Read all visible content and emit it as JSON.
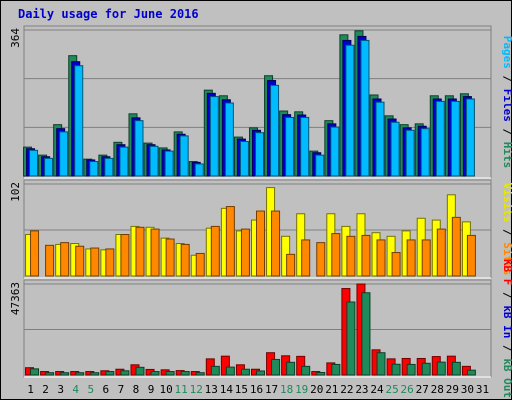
{
  "chart_data": {
    "type": "bar",
    "title": "Daily usage for June 2016",
    "categories": [
      "1",
      "2",
      "3",
      "4",
      "5",
      "6",
      "7",
      "8",
      "9",
      "10",
      "11",
      "12",
      "13",
      "14",
      "15",
      "16",
      "17",
      "18",
      "19",
      "20",
      "21",
      "22",
      "23",
      "24",
      "25",
      "26",
      "27",
      "28",
      "29",
      "30",
      "31"
    ],
    "weekend_days": [
      4,
      5,
      11,
      12,
      18,
      19,
      25,
      26
    ],
    "panels": [
      {
        "id": "top",
        "ymax": 364,
        "ytick_label": "364",
        "side_labels": [
          {
            "text": "Pages",
            "color": "#00bbff"
          },
          {
            "text": " / ",
            "color": "#000000"
          },
          {
            "text": "Files",
            "color": "#0000cc"
          },
          {
            "text": " / ",
            "color": "#000000"
          },
          {
            "text": "Hits",
            "color": "#1f8a5a"
          }
        ],
        "series": [
          {
            "name": "Hits",
            "color": "#1f8a5a",
            "values": [
              72,
              52,
              128,
              300,
              42,
              52,
              84,
              155,
              82,
              70,
              110,
              36,
              214,
              200,
              97,
              120,
              250,
              162,
              160,
              62,
              138,
              352,
              362,
              202,
              150,
              128,
              130,
              200,
              200,
              205,
              0
            ]
          },
          {
            "name": "Files",
            "color": "#0000cc",
            "values": [
              68,
              48,
              118,
              285,
              40,
              48,
              78,
              145,
              78,
              65,
              104,
              34,
              206,
              190,
              92,
              114,
              238,
              153,
              152,
              58,
              130,
              338,
              348,
              192,
              142,
              120,
              124,
              192,
              192,
              198,
              0
            ]
          },
          {
            "name": "Pages",
            "color": "#00bbff",
            "values": [
              64,
              44,
              110,
              275,
              36,
              44,
              72,
              138,
              74,
              62,
              100,
              30,
              198,
              182,
              86,
              108,
              226,
              146,
              146,
              52,
              122,
              326,
              338,
              184,
              134,
              114,
              118,
              186,
              186,
              192,
              0
            ]
          }
        ]
      },
      {
        "id": "middle",
        "ymax": 102,
        "ytick_label": "102",
        "side_labels": [
          {
            "text": "Visits",
            "color": "#e6e600"
          },
          {
            "text": " / ",
            "color": "#000000"
          },
          {
            "text": "Sites",
            "color": "#ff8800"
          }
        ],
        "series": [
          {
            "name": "Visits",
            "color": "#ffff00",
            "values": [
              46,
              0,
              35,
              36,
              30,
              29,
              46,
              55,
              54,
              42,
              36,
              23,
              53,
              75,
              50,
              62,
              98,
              44,
              69,
              0,
              69,
              55,
              69,
              48,
              44,
              50,
              64,
              62,
              90,
              60,
              0
            ]
          },
          {
            "name": "Sites",
            "color": "#ff8800",
            "values": [
              50,
              34,
              37,
              33,
              31,
              30,
              46,
              54,
              52,
              41,
              35,
              25,
              55,
              77,
              52,
              72,
              72,
              24,
              40,
              37,
              47,
              44,
              45,
              40,
              26,
              40,
              40,
              52,
              65,
              45,
              0
            ]
          }
        ]
      },
      {
        "id": "bottom",
        "ymax": 47363,
        "ytick_label": "47363",
        "side_labels": [
          {
            "text": "KB F",
            "color": "#ff0000"
          },
          {
            "text": " / ",
            "color": "#000000"
          },
          {
            "text": "kB In",
            "color": "#0000cc"
          },
          {
            "text": " / ",
            "color": "#000000"
          },
          {
            "text": "kB Out",
            "color": "#1f8a5a"
          }
        ],
        "series": [
          {
            "name": "KB F",
            "color": "#ff0000",
            "values": [
              3800,
              1800,
              1800,
              1800,
              1800,
              2200,
              3000,
              5300,
              2900,
              2700,
              2300,
              1800,
              8400,
              9800,
              5300,
              3000,
              11600,
              10000,
              9700,
              1800,
              6300,
              45000,
              47363,
              13100,
              8400,
              8600,
              8600,
              9600,
              9800,
              4500,
              0
            ]
          },
          {
            "name": "kB Out",
            "color": "#1f8a5a",
            "values": [
              3200,
              1200,
              1200,
              1200,
              1200,
              1800,
              2200,
              4000,
              1800,
              1800,
              1800,
              1200,
              4500,
              4100,
              3000,
              2100,
              8100,
              6600,
              4500,
              1300,
              5500,
              38000,
              42800,
              11600,
              5600,
              5500,
              6100,
              6700,
              6600,
              2500,
              0
            ]
          }
        ]
      }
    ]
  }
}
